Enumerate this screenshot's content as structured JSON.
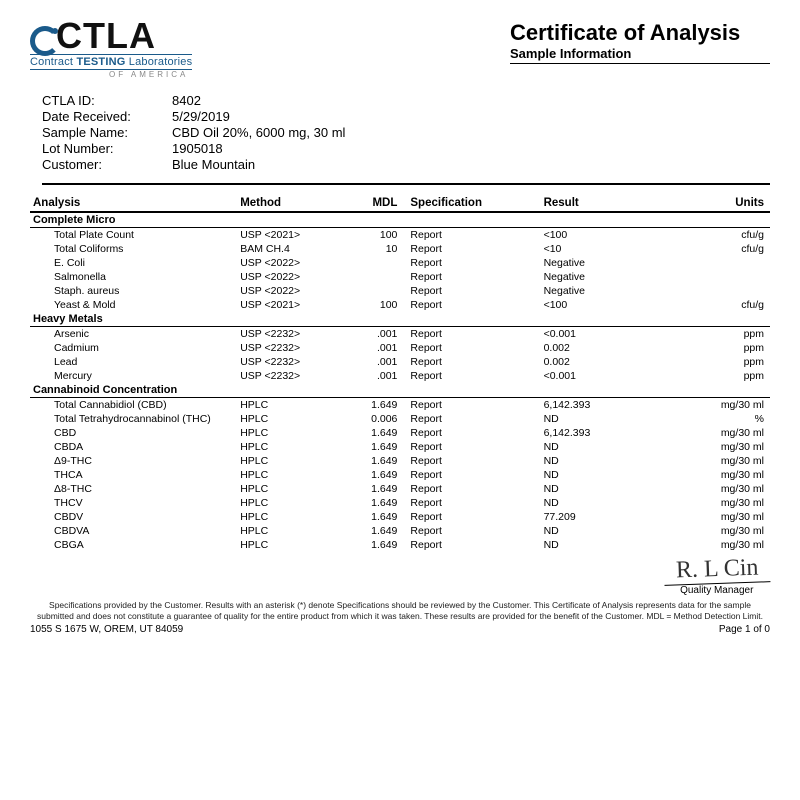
{
  "logo": {
    "acronym": "CTLA",
    "line1": "Contract TESTING Laboratories",
    "line2": "OF AMERICA"
  },
  "title": {
    "main": "Certificate of Analysis",
    "sub": "Sample Information"
  },
  "info": [
    {
      "label": "CTLA ID:",
      "value": "8402"
    },
    {
      "label": "Date Received:",
      "value": "5/29/2019"
    },
    {
      "label": "Sample Name:",
      "value": "CBD Oil 20%, 6000 mg, 30 ml"
    },
    {
      "label": "Lot Number:",
      "value": "1905018"
    },
    {
      "label": "Customer:",
      "value": "Blue Mountain"
    }
  ],
  "columns": {
    "analysis": "Analysis",
    "method": "Method",
    "mdl": "MDL",
    "spec": "Specification",
    "result": "Result",
    "units": "Units"
  },
  "sections": [
    {
      "name": "Complete Micro",
      "rows": [
        {
          "a": "Total Plate Count",
          "m": "USP <2021>",
          "mdl": "100",
          "s": "Report",
          "r": "<100",
          "u": "cfu/g"
        },
        {
          "a": "Total Coliforms",
          "m": "BAM CH.4",
          "mdl": "10",
          "s": "Report",
          "r": "<10",
          "u": "cfu/g"
        },
        {
          "a": "E. Coli",
          "m": "USP <2022>",
          "mdl": "",
          "s": "Report",
          "r": "Negative",
          "u": ""
        },
        {
          "a": "Salmonella",
          "m": "USP <2022>",
          "mdl": "",
          "s": "Report",
          "r": "Negative",
          "u": ""
        },
        {
          "a": "Staph. aureus",
          "m": "USP <2022>",
          "mdl": "",
          "s": "Report",
          "r": "Negative",
          "u": ""
        },
        {
          "a": "Yeast & Mold",
          "m": "USP <2021>",
          "mdl": "100",
          "s": "Report",
          "r": "<100",
          "u": "cfu/g"
        }
      ]
    },
    {
      "name": "Heavy Metals",
      "rows": [
        {
          "a": "Arsenic",
          "m": "USP <2232>",
          "mdl": ".001",
          "s": "Report",
          "r": "<0.001",
          "u": "ppm"
        },
        {
          "a": "Cadmium",
          "m": "USP <2232>",
          "mdl": ".001",
          "s": "Report",
          "r": "0.002",
          "u": "ppm"
        },
        {
          "a": "Lead",
          "m": "USP <2232>",
          "mdl": ".001",
          "s": "Report",
          "r": "0.002",
          "u": "ppm"
        },
        {
          "a": "Mercury",
          "m": "USP <2232>",
          "mdl": ".001",
          "s": "Report",
          "r": "<0.001",
          "u": "ppm"
        }
      ]
    },
    {
      "name": "Cannabinoid Concentration",
      "rows": [
        {
          "a": "Total Cannabidiol (CBD)",
          "m": "HPLC",
          "mdl": "1.649",
          "s": "Report",
          "r": "6,142.393",
          "u": "mg/30 ml"
        },
        {
          "a": "Total Tetrahydrocannabinol (THC)",
          "m": "HPLC",
          "mdl": "0.006",
          "s": "Report",
          "r": "ND",
          "u": "%"
        },
        {
          "a": "CBD",
          "m": "HPLC",
          "mdl": "1.649",
          "s": "Report",
          "r": "6,142.393",
          "u": "mg/30 ml"
        },
        {
          "a": "CBDA",
          "m": "HPLC",
          "mdl": "1.649",
          "s": "Report",
          "r": "ND",
          "u": "mg/30 ml"
        },
        {
          "a": "Δ9-THC",
          "m": "HPLC",
          "mdl": "1.649",
          "s": "Report",
          "r": "ND",
          "u": "mg/30 ml"
        },
        {
          "a": "THCA",
          "m": "HPLC",
          "mdl": "1.649",
          "s": "Report",
          "r": "ND",
          "u": "mg/30 ml"
        },
        {
          "a": "Δ8-THC",
          "m": "HPLC",
          "mdl": "1.649",
          "s": "Report",
          "r": "ND",
          "u": "mg/30 ml"
        },
        {
          "a": "THCV",
          "m": "HPLC",
          "mdl": "1.649",
          "s": "Report",
          "r": "ND",
          "u": "mg/30 ml"
        },
        {
          "a": "CBDV",
          "m": "HPLC",
          "mdl": "1.649",
          "s": "Report",
          "r": "77.209",
          "u": "mg/30 ml"
        },
        {
          "a": "CBDVA",
          "m": "HPLC",
          "mdl": "1.649",
          "s": "Report",
          "r": "ND",
          "u": "mg/30 ml"
        },
        {
          "a": "CBGA",
          "m": "HPLC",
          "mdl": "1.649",
          "s": "Report",
          "r": "ND",
          "u": "mg/30 ml"
        }
      ]
    }
  ],
  "signature": {
    "name": "Quality Manager",
    "scribble": "R. L Cin"
  },
  "disclaimer": "Specifications provided by the Customer. Results with an asterisk (*) denote Specifications should be reviewed by the Customer. This Certificate of Analysis represents data for the sample submitted and does not constitute a guarantee of quality for the entire product from which it was taken. These results are provided for the benefit of the Customer.  MDL = Method Detection Limit.",
  "footer": {
    "address": "1055 S 1675 W, OREM, UT 84059",
    "page": "Page 1 of 0"
  }
}
